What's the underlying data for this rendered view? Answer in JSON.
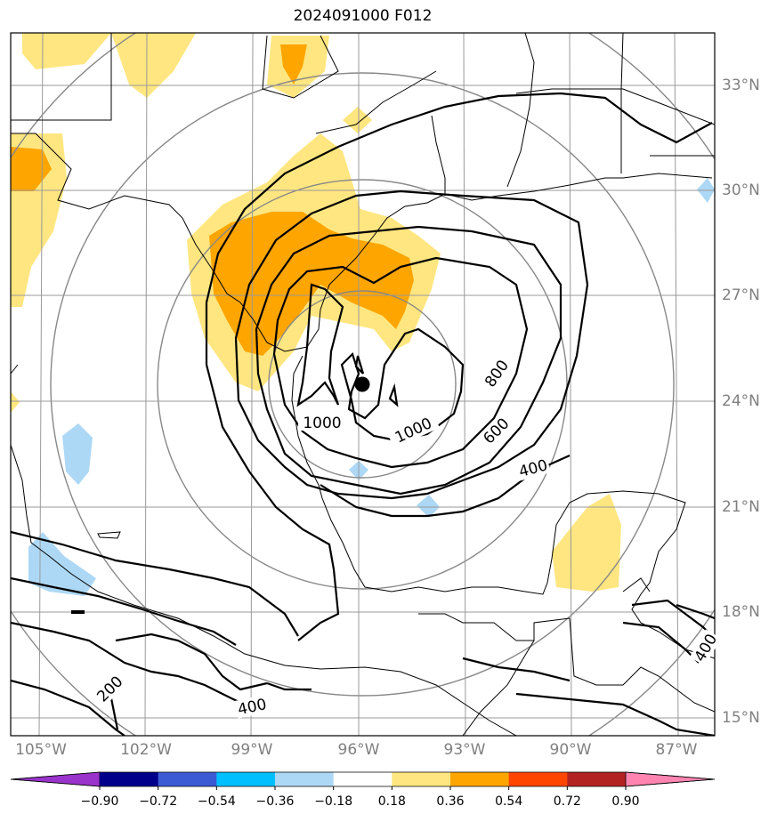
{
  "title": "2024091000 F012",
  "lon_labels": [
    "105°W",
    "102°W",
    "99°W",
    "96°W",
    "93°W",
    "90°W",
    "87°W"
  ],
  "lat_labels": [
    "33°N",
    "30°N",
    "27°N",
    "24°N",
    "21°N",
    "18°N",
    "15°N"
  ],
  "contour_labels": [
    "1000",
    "1000",
    "800",
    "600",
    "400",
    "400",
    "200",
    "400"
  ],
  "colorbar": {
    "ticks": [
      "−0.90",
      "−0.72",
      "−0.54",
      "−0.36",
      "−0.18",
      "0.18",
      "0.36",
      "0.54",
      "0.72",
      "0.90"
    ],
    "colors": [
      "#9933cc",
      "#00008b",
      "#3b5bd5",
      "#00bfff",
      "#add8f5",
      "#ffffff",
      "#ffe680",
      "#ffa500",
      "#ff4500",
      "#b22222",
      "#ff85b0"
    ]
  },
  "colors": {
    "fill_light_yellow": "#ffe680",
    "fill_orange": "#ffa500",
    "fill_light_blue": "#add8f5",
    "grid": "#999999",
    "range_ring": "#888888",
    "axis_label": "#808080"
  },
  "storm_center_marker": "filled-circle"
}
